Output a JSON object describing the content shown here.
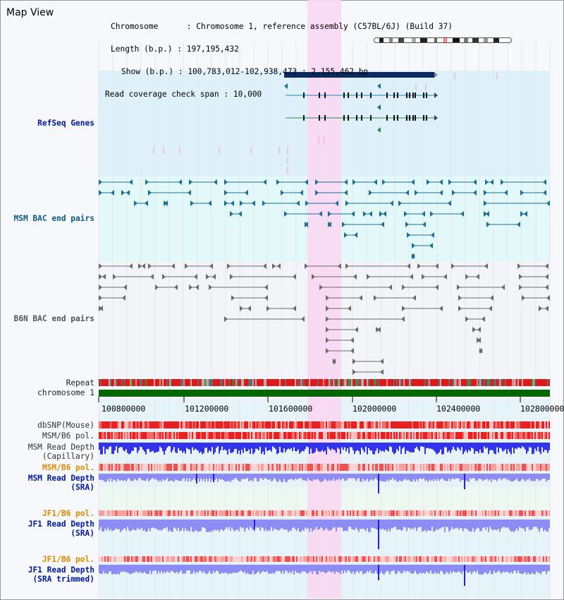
{
  "title": "Map View",
  "info": {
    "chromosome_key": "Chromosome",
    "chromosome_val": "Chromosome 1, reference assembly (C57BL/6J) (Build 37)",
    "length_key": "Length (b.p.)",
    "length_val": "197,195,432",
    "show_key": "Show (b.p.)",
    "show_val": "100,783,012-102,938,473 : 2,155,462 bp",
    "coverage_key": "Read coverage check span",
    "coverage_val": "10,000"
  },
  "tracks": {
    "refseq": "RefSeq Genes",
    "msm_bac": "MSM BAC end pairs",
    "b6n_bac": "B6N BAC end pairs",
    "repeat": "Repeat",
    "chromosome": "chromosome 1",
    "dbsnp": "dbSNP(Mouse)",
    "msm_b6_pol_1": "MSM/B6 pol.",
    "msm_depth_cap_1": "MSM Read Depth",
    "msm_depth_cap_2": "(Capillary)",
    "msm_b6_pol_2": "MSM/B6 pol.",
    "msm_depth_sra_1": "MSM Read Depth",
    "msm_depth_sra_2": "(SRA)",
    "jf1_b6_pol_1": "JF1/B6 pol.",
    "jf1_depth_sra_1": "JF1 Read Depth",
    "jf1_depth_sra_2": "(SRA)",
    "jf1_b6_pol_2": "JF1/B6 pol.",
    "jf1_depth_trim_1": "JF1 Read Depth",
    "jf1_depth_trim_2": "(SRA trimmed)"
  },
  "axis_ticks": [
    "100800000",
    "101200000",
    "101600000",
    "102000000",
    "102400000",
    "102800000"
  ],
  "colors": {
    "refseq_bg": "#def1fa",
    "msm_bg": "#e3f8f8",
    "b6n_bg": "#f2f4f8",
    "highlight": "#f8d8f2",
    "gene_dark": "#0b2a5e",
    "msm_pair": "#1a6e9a",
    "b6n_pair": "#6a6a6a",
    "snp_red": "#e82020",
    "depth_blue": "#3333ee",
    "depth_light": "#8c8cf4",
    "chrom_green": "#006600"
  }
}
